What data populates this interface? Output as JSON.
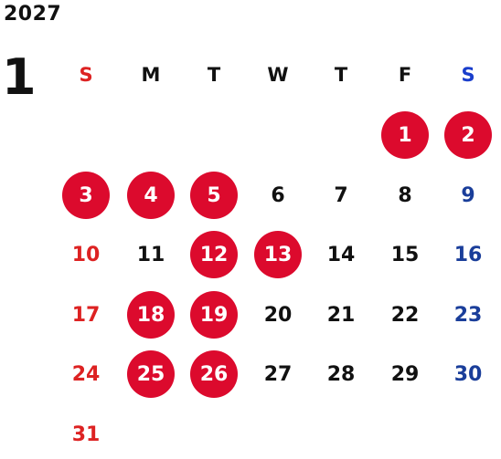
{
  "calendar": {
    "year": "2027",
    "month": "1",
    "weekdays": [
      "S",
      "M",
      "T",
      "W",
      "T",
      "F",
      "S"
    ],
    "colors": {
      "holiday_bg": "#dc0a2d",
      "sunday": "#dd2222",
      "saturday": "#1a3e9a",
      "weekday": "#111111"
    },
    "weeks": [
      [
        {
          "day": ""
        },
        {
          "day": ""
        },
        {
          "day": ""
        },
        {
          "day": ""
        },
        {
          "day": ""
        },
        {
          "day": "1",
          "holiday": true
        },
        {
          "day": "2",
          "holiday": true
        }
      ],
      [
        {
          "day": "3",
          "holiday": true
        },
        {
          "day": "4",
          "holiday": true
        },
        {
          "day": "5",
          "holiday": true
        },
        {
          "day": "6"
        },
        {
          "day": "7"
        },
        {
          "day": "8"
        },
        {
          "day": "9"
        }
      ],
      [
        {
          "day": "10"
        },
        {
          "day": "11"
        },
        {
          "day": "12",
          "holiday": true
        },
        {
          "day": "13",
          "holiday": true
        },
        {
          "day": "14"
        },
        {
          "day": "15"
        },
        {
          "day": "16"
        }
      ],
      [
        {
          "day": "17"
        },
        {
          "day": "18",
          "holiday": true
        },
        {
          "day": "19",
          "holiday": true
        },
        {
          "day": "20"
        },
        {
          "day": "21"
        },
        {
          "day": "22"
        },
        {
          "day": "23"
        }
      ],
      [
        {
          "day": "24"
        },
        {
          "day": "25",
          "holiday": true
        },
        {
          "day": "26",
          "holiday": true
        },
        {
          "day": "27"
        },
        {
          "day": "28"
        },
        {
          "day": "29"
        },
        {
          "day": "30"
        }
      ],
      [
        {
          "day": "31"
        },
        {
          "day": ""
        },
        {
          "day": ""
        },
        {
          "day": ""
        },
        {
          "day": ""
        },
        {
          "day": ""
        },
        {
          "day": ""
        }
      ]
    ]
  }
}
